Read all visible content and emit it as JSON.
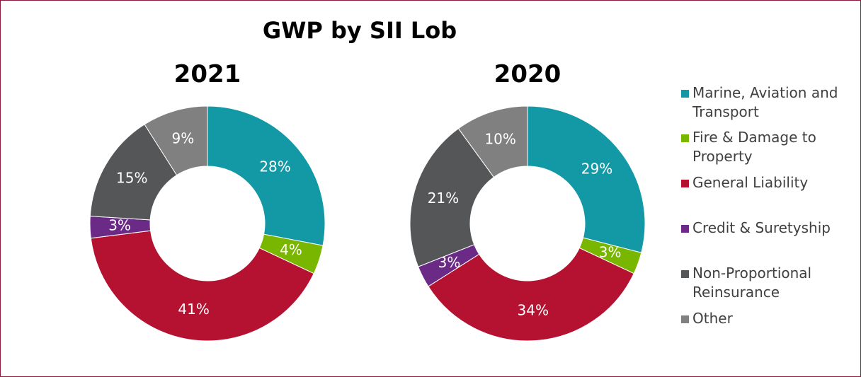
{
  "title": "GWP by SII Lob",
  "chart_data": [
    {
      "type": "pie",
      "title": "2021",
      "categories": [
        "Marine, Aviation and Transport",
        "Fire & Damage to Property",
        "General Liability",
        "Credit & Suretyship",
        "Non-Proportional Reinsurance",
        "Other"
      ],
      "values": [
        28,
        4,
        41,
        3,
        15,
        9
      ],
      "value_labels": [
        "28%",
        "4%",
        "41%",
        "3%",
        "15%",
        "9%"
      ],
      "colors": [
        "#1299a5",
        "#78b600",
        "#b51232",
        "#6a2a86",
        "#545658",
        "#808080"
      ]
    },
    {
      "type": "pie",
      "title": "2020",
      "values": [
        29,
        3,
        34,
        3,
        21,
        10
      ],
      "value_labels": [
        "29%",
        "3%",
        "34%",
        "3%",
        "21%",
        "10%"
      ],
      "colors": [
        "#1299a5",
        "#78b600",
        "#b51232",
        "#6a2a86",
        "#545658",
        "#808080"
      ]
    }
  ]
}
